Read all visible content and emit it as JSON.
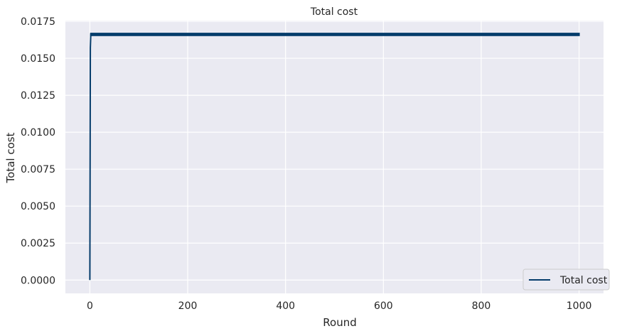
{
  "chart_data": {
    "type": "line",
    "title": "Total cost",
    "xlabel": "Round",
    "ylabel": "Total cost",
    "xlim": [
      -50,
      1050
    ],
    "ylim": [
      -0.0009,
      0.01755
    ],
    "xticks": [
      0,
      200,
      400,
      600,
      800,
      1000
    ],
    "xtick_labels": [
      "0",
      "200",
      "400",
      "600",
      "800",
      "1000"
    ],
    "yticks": [
      0.0,
      0.0025,
      0.005,
      0.0075,
      0.01,
      0.0125,
      0.015,
      0.0175
    ],
    "ytick_labels": [
      "0.0000",
      "0.0025",
      "0.0050",
      "0.0075",
      "0.0100",
      "0.0125",
      "0.0150",
      "0.0175"
    ],
    "grid": true,
    "legend_position": "bottom-right",
    "oscillation": {
      "start_round": 2,
      "end_round": 1000,
      "low": 0.01655,
      "high": 0.01668
    },
    "series": [
      {
        "name": "Total cost",
        "color": "#053C6B",
        "x": [
          0,
          1,
          2
        ],
        "y": [
          0.0,
          0.0157,
          0.01668
        ]
      }
    ],
    "colors": {
      "plot_background": "#EAEAF2",
      "grid": "#FFFFFF",
      "line": "#053C6B",
      "text": "#262626"
    }
  }
}
